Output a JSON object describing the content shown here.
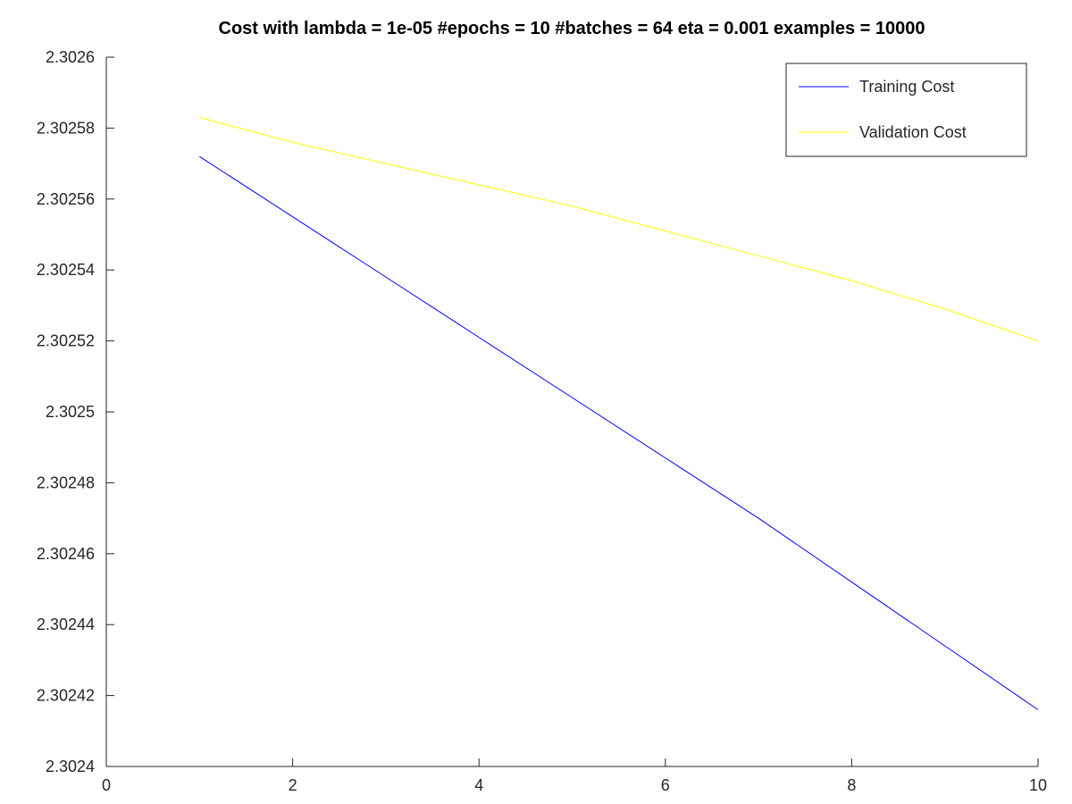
{
  "chart_data": {
    "type": "line",
    "title": "Cost with lambda = 1e-05 #epochs = 10 #batches = 64 eta = 0.001 examples = 10000",
    "xlabel": "",
    "ylabel": "",
    "xlim": [
      0,
      10
    ],
    "ylim": [
      2.3024,
      2.3026
    ],
    "grid": false,
    "legend_position": "top-right",
    "x_ticks": [
      0,
      2,
      4,
      6,
      8,
      10
    ],
    "x_tick_labels": [
      "0",
      "2",
      "4",
      "6",
      "8",
      "10"
    ],
    "y_ticks": [
      2.3024,
      2.30242,
      2.30244,
      2.30246,
      2.30248,
      2.3025,
      2.30252,
      2.30254,
      2.30256,
      2.30258,
      2.3026
    ],
    "y_tick_labels": [
      "2.3024",
      "2.30242",
      "2.30244",
      "2.30246",
      "2.30248",
      "2.3025",
      "2.30252",
      "2.30254",
      "2.30256",
      "2.30258",
      "2.3026"
    ],
    "x": [
      1,
      2,
      3,
      4,
      5,
      6,
      7,
      8,
      9,
      10
    ],
    "series": [
      {
        "name": "Training Cost",
        "color": "#0000ff",
        "values": [
          2.302572,
          2.302555,
          2.302538,
          2.302521,
          2.302504,
          2.302487,
          2.30247,
          2.302452,
          2.302434,
          2.302416
        ]
      },
      {
        "name": "Validation Cost",
        "color": "#ffff00",
        "values": [
          2.302583,
          2.302576,
          2.30257,
          2.302564,
          2.302558,
          2.302551,
          2.302544,
          2.302537,
          2.302529,
          2.30252
        ]
      }
    ]
  }
}
